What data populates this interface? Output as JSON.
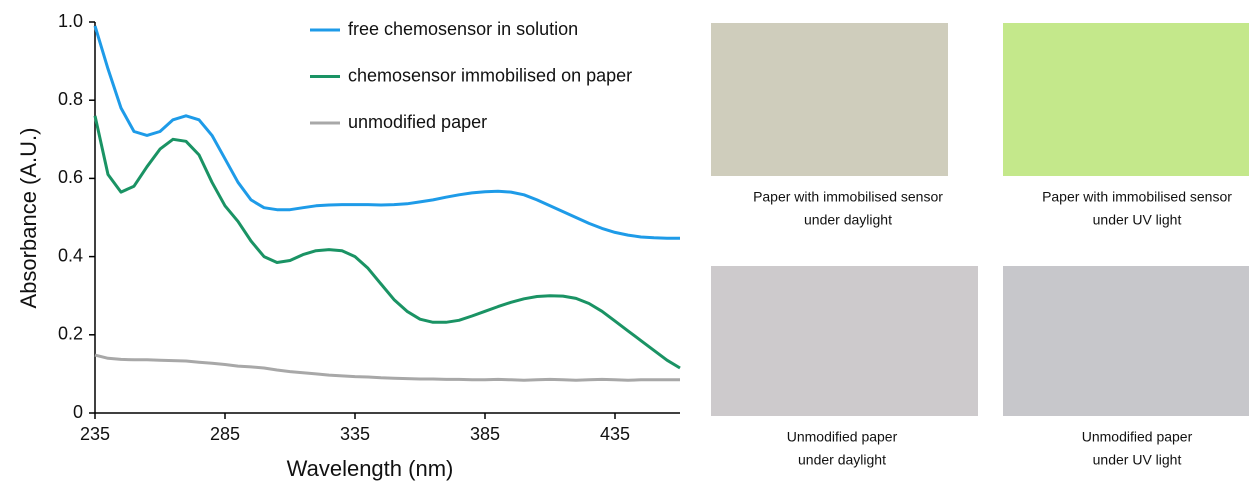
{
  "chart_data": {
    "type": "line",
    "xlabel": "Wavelength (nm)",
    "ylabel": "Absorbance (A.U.)",
    "x": [
      235,
      240,
      245,
      250,
      255,
      260,
      265,
      270,
      275,
      280,
      285,
      290,
      295,
      300,
      305,
      310,
      315,
      320,
      325,
      330,
      335,
      340,
      345,
      350,
      355,
      360,
      365,
      370,
      375,
      380,
      385,
      390,
      395,
      400,
      405,
      410,
      415,
      420,
      425,
      430,
      435,
      440,
      445,
      450,
      455,
      460
    ],
    "series": [
      {
        "name": "free chemosensor in solution",
        "color": "#1e9be8",
        "values": [
          0.99,
          0.88,
          0.78,
          0.72,
          0.71,
          0.72,
          0.75,
          0.76,
          0.75,
          0.71,
          0.65,
          0.59,
          0.545,
          0.525,
          0.52,
          0.52,
          0.525,
          0.53,
          0.532,
          0.533,
          0.533,
          0.533,
          0.532,
          0.533,
          0.535,
          0.54,
          0.545,
          0.552,
          0.558,
          0.563,
          0.566,
          0.567,
          0.565,
          0.558,
          0.545,
          0.53,
          0.515,
          0.5,
          0.485,
          0.472,
          0.462,
          0.455,
          0.45,
          0.448,
          0.447,
          0.447
        ]
      },
      {
        "name": "chemosensor immobilised on paper",
        "color": "#1a9364",
        "values": [
          0.76,
          0.61,
          0.565,
          0.58,
          0.63,
          0.675,
          0.7,
          0.695,
          0.66,
          0.59,
          0.53,
          0.49,
          0.44,
          0.4,
          0.385,
          0.39,
          0.405,
          0.415,
          0.418,
          0.415,
          0.4,
          0.37,
          0.33,
          0.29,
          0.26,
          0.24,
          0.232,
          0.232,
          0.237,
          0.248,
          0.26,
          0.272,
          0.283,
          0.292,
          0.298,
          0.3,
          0.299,
          0.293,
          0.28,
          0.26,
          0.235,
          0.21,
          0.185,
          0.16,
          0.135,
          0.115
        ]
      },
      {
        "name": "unmodified paper",
        "color": "#a8a8a8",
        "values": [
          0.148,
          0.14,
          0.137,
          0.136,
          0.136,
          0.135,
          0.134,
          0.133,
          0.13,
          0.127,
          0.124,
          0.12,
          0.118,
          0.115,
          0.11,
          0.106,
          0.103,
          0.1,
          0.097,
          0.095,
          0.093,
          0.092,
          0.09,
          0.089,
          0.088,
          0.087,
          0.087,
          0.086,
          0.086,
          0.085,
          0.085,
          0.086,
          0.085,
          0.084,
          0.085,
          0.086,
          0.085,
          0.084,
          0.085,
          0.086,
          0.085,
          0.084,
          0.085,
          0.085,
          0.085,
          0.085
        ]
      }
    ],
    "xlim": [
      235,
      460
    ],
    "xticks": [
      235,
      285,
      335,
      385,
      435
    ],
    "ylim": [
      0,
      1
    ],
    "yticks": [
      0,
      0.2,
      0.4,
      0.6,
      0.8,
      {
        "value": 1,
        "label": "1.0"
      }
    ]
  },
  "panels": [
    {
      "caption": [
        "Paper with immobilised sensor",
        "under daylight"
      ]
    },
    {
      "caption": [
        "Paper with immobilised sensor",
        "under UV light"
      ]
    },
    {
      "caption": [
        "Unmodified paper",
        "under daylight"
      ]
    },
    {
      "caption": [
        "Unmodified paper",
        "under UV light"
      ]
    }
  ]
}
